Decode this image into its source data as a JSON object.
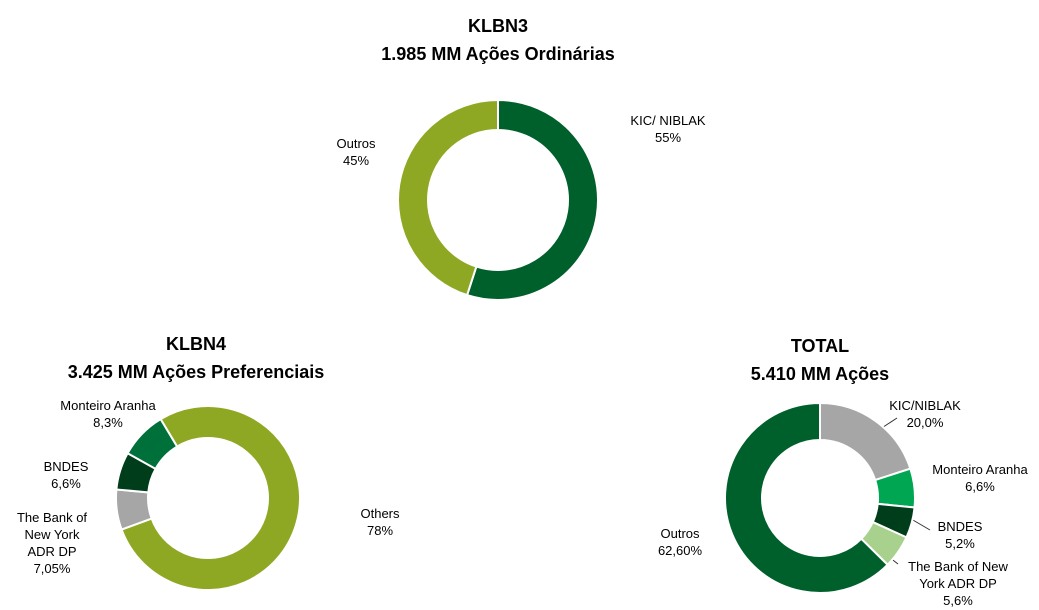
{
  "chart_data": [
    {
      "type": "donut",
      "title": "KLBN3",
      "subtitle": "1.985 MM Ações Ordinárias",
      "categories": [
        "KIC/ NIBLAK",
        "Outros"
      ],
      "values": [
        55,
        45
      ],
      "value_labels": [
        "55%",
        "45%"
      ],
      "colors": [
        "#00602b",
        "#8fa823"
      ]
    },
    {
      "type": "donut",
      "title": "KLBN4",
      "subtitle": "3.425 MM Ações Preferenciais",
      "categories": [
        "Others",
        "The Bank of New York ADR DP",
        "BNDES",
        "Monteiro Aranha"
      ],
      "values": [
        78,
        7.05,
        6.6,
        8.3
      ],
      "value_labels": [
        "78%",
        "7,05%",
        "6,6%",
        "8,3%"
      ],
      "colors": [
        "#8fa823",
        "#a6a6a6",
        "#003d1a",
        "#00703a"
      ]
    },
    {
      "type": "donut",
      "title": "TOTAL",
      "subtitle": "5.410 MM Ações",
      "categories": [
        "KIC/NIBLAK",
        "Monteiro Aranha",
        "BNDES",
        "The Bank of New York ADR DP",
        "Outros"
      ],
      "values": [
        20.0,
        6.6,
        5.2,
        5.6,
        62.6
      ],
      "value_labels": [
        "20,0%",
        "6,6%",
        "5,2%",
        "5,6%",
        "62,60%"
      ],
      "colors": [
        "#a6a6a6",
        "#00a651",
        "#003d1a",
        "#a9d18e",
        "#00602b"
      ]
    }
  ]
}
